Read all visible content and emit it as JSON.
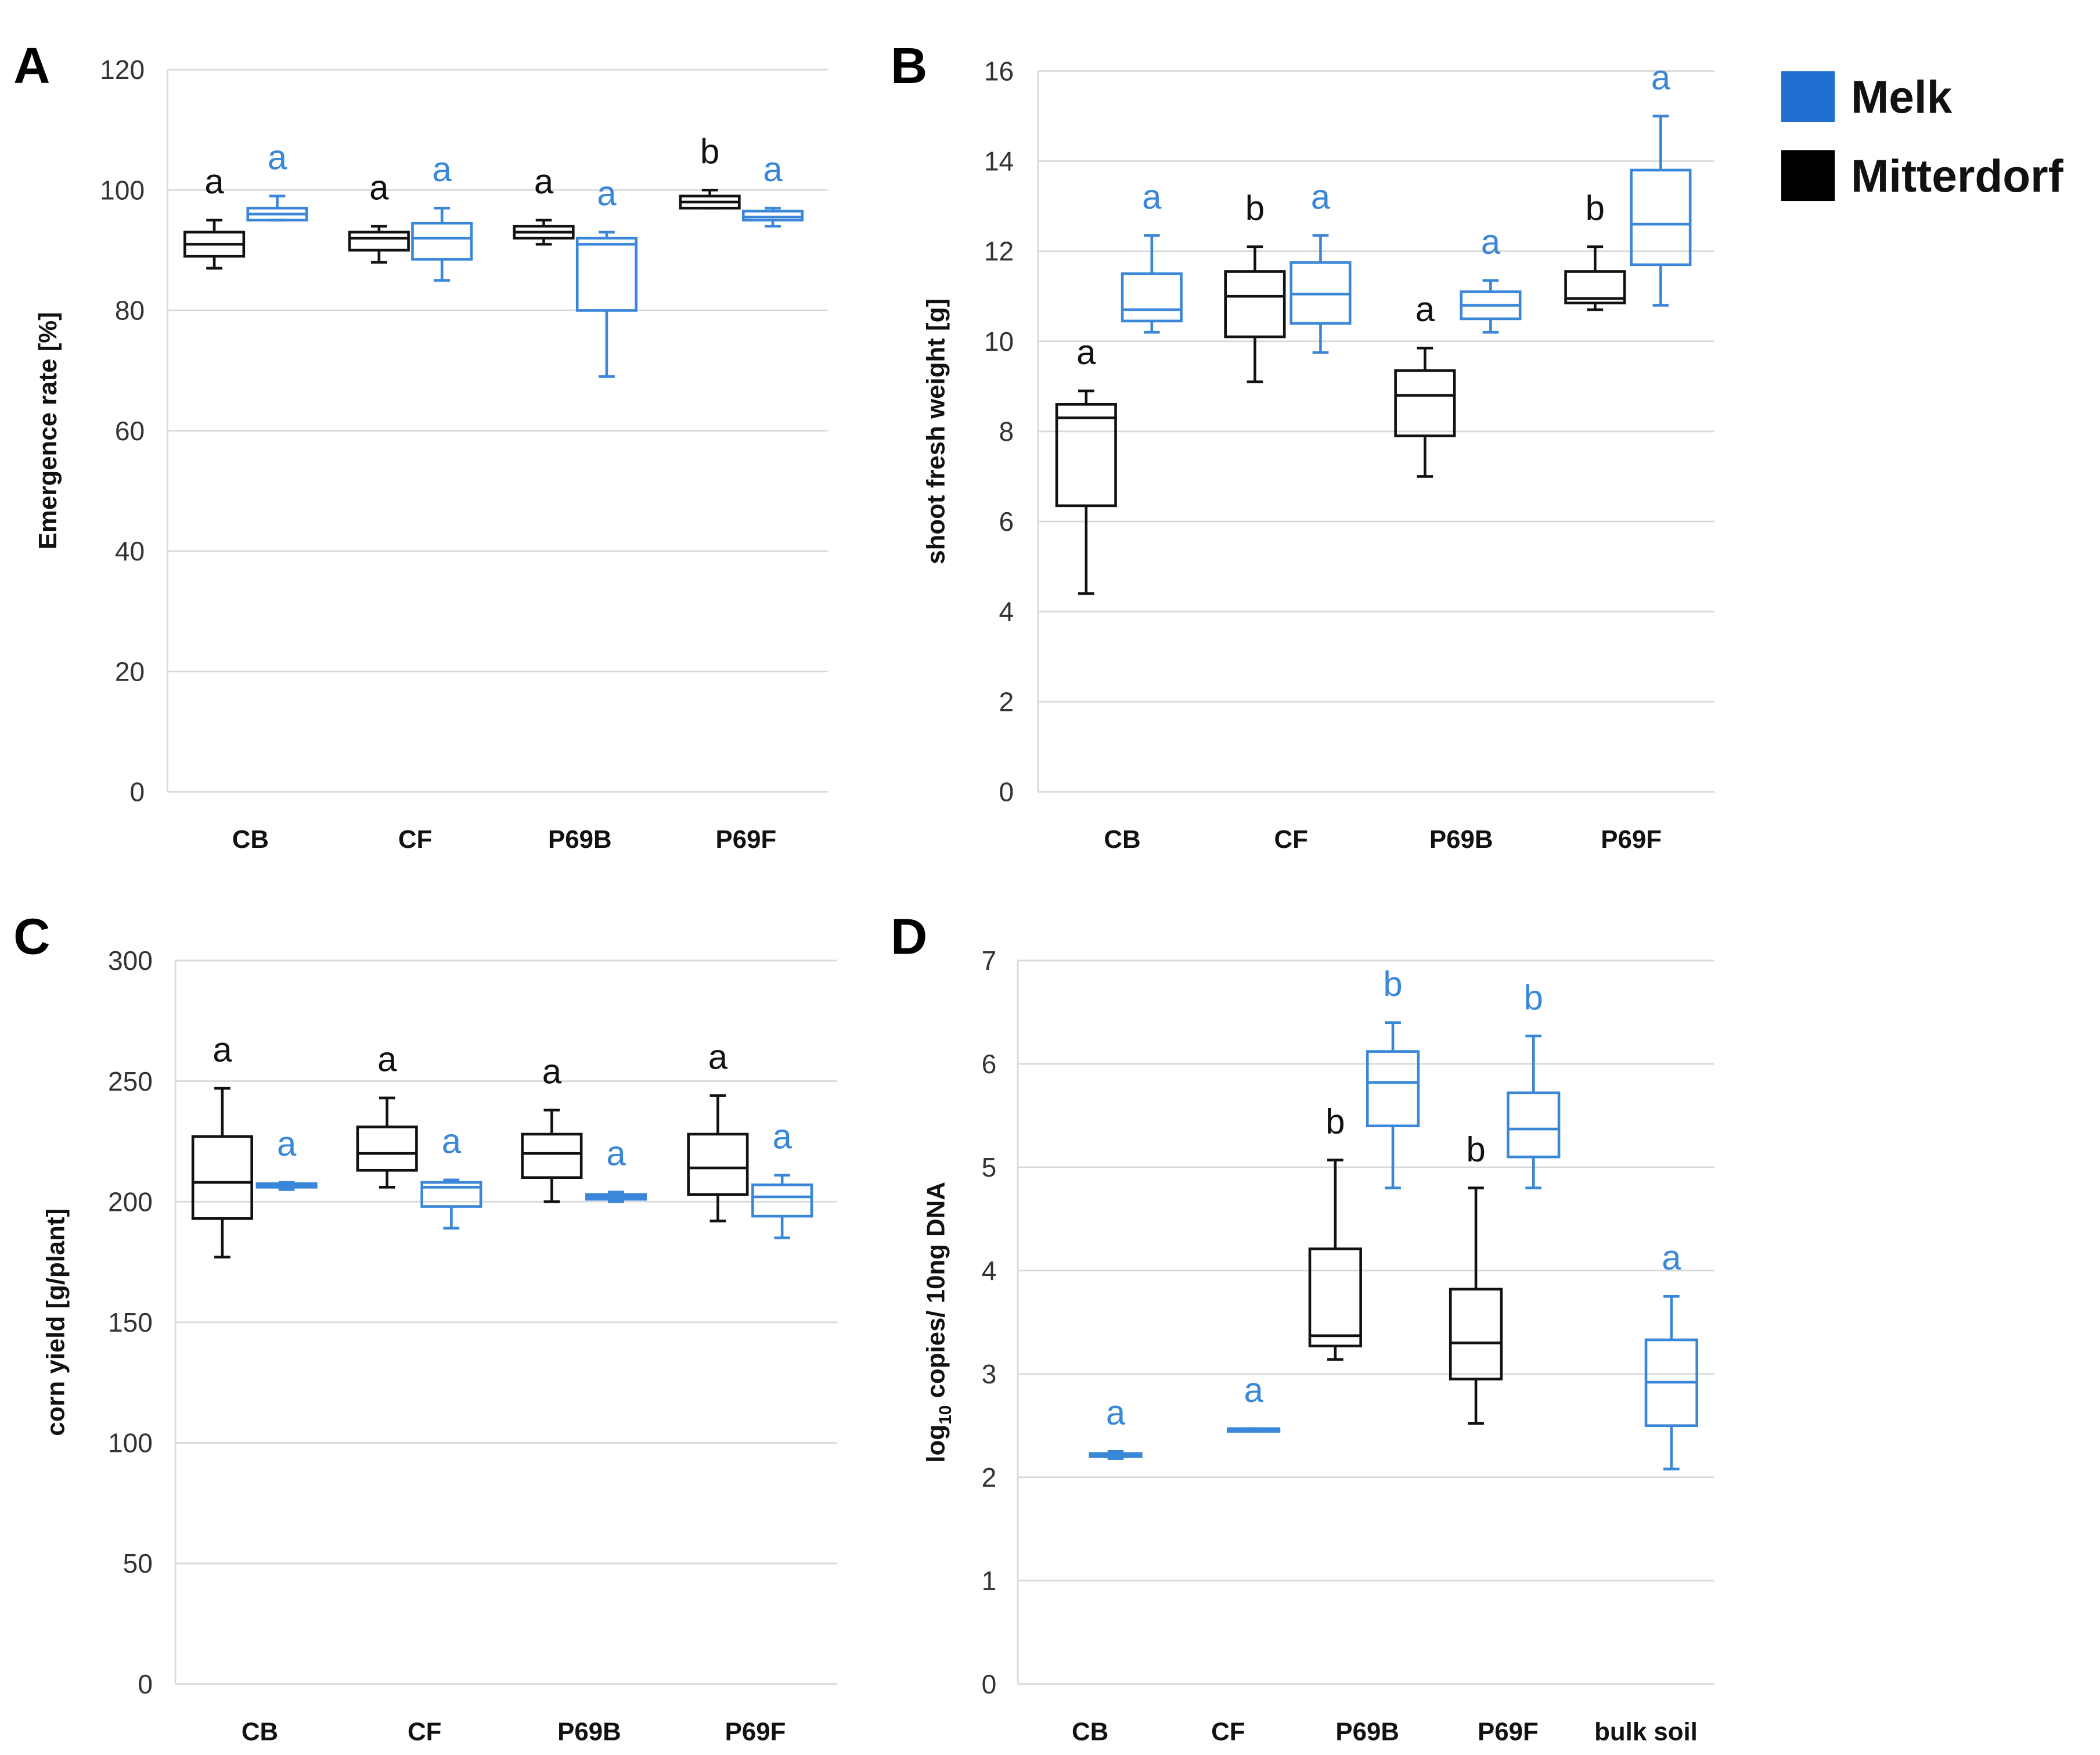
{
  "legend": [
    {
      "name": "Melk",
      "color": "#1f6fd0"
    },
    {
      "name": "Mitterdorf",
      "color": "#000000"
    }
  ],
  "colors": {
    "Melk_line": "#3a86d8",
    "Mitterdorf_line": "#111111",
    "Melk_letter": "#3a86d8",
    "Mitterdorf_letter": "#111111"
  },
  "chart_data": [
    {
      "panel": "A",
      "type": "box",
      "ylabel": "Emergence rate [%]",
      "ylim": [
        0,
        120
      ],
      "yticks": [
        0,
        20,
        40,
        60,
        80,
        100,
        120
      ],
      "categories": [
        "CB",
        "CF",
        "P69B",
        "P69F"
      ],
      "series": [
        {
          "name": "Mitterdorf",
          "stats": [
            [
              87,
              89,
              91,
              93,
              95
            ],
            [
              88,
              90,
              92,
              93,
              94
            ],
            [
              91,
              92,
              93,
              94,
              95
            ],
            [
              97,
              97,
              98,
              99,
              100
            ]
          ],
          "letters": [
            "a",
            "a",
            "a",
            "b"
          ]
        },
        {
          "name": "Melk",
          "stats": [
            [
              95,
              95,
              96,
              97,
              99
            ],
            [
              85,
              88.5,
              92,
              94.5,
              97
            ],
            [
              69,
              80,
              91,
              92,
              93
            ],
            [
              94,
              95,
              95.5,
              96.5,
              97
            ]
          ],
          "letters": [
            "a",
            "a",
            "a",
            "a"
          ]
        }
      ]
    },
    {
      "panel": "B",
      "type": "box",
      "ylabel": "shoot fresh weight [g]",
      "ylim": [
        0,
        16
      ],
      "yticks": [
        0,
        2,
        4,
        6,
        8,
        10,
        12,
        14,
        16
      ],
      "categories": [
        "CB",
        "CF",
        "P69B",
        "P69F"
      ],
      "series": [
        {
          "name": "Mitterdorf",
          "stats": [
            [
              4.4,
              6.35,
              8.3,
              8.6,
              8.9
            ],
            [
              9.1,
              10.1,
              11,
              11.55,
              12.1
            ],
            [
              7,
              7.9,
              8.8,
              9.35,
              9.85
            ],
            [
              10.7,
              10.85,
              10.95,
              11.55,
              12.1
            ]
          ],
          "letters": [
            "a",
            "b",
            "a",
            "b"
          ]
        },
        {
          "name": "Melk",
          "stats": [
            [
              10.2,
              10.45,
              10.7,
              11.5,
              12.35
            ],
            [
              9.75,
              10.4,
              11.05,
              11.75,
              12.35
            ],
            [
              10.2,
              10.5,
              10.8,
              11.1,
              11.35
            ],
            [
              10.8,
              11.7,
              12.6,
              13.8,
              15
            ]
          ],
          "letters": [
            "a",
            "a",
            "a",
            "a"
          ]
        }
      ]
    },
    {
      "panel": "C",
      "type": "box",
      "ylabel": "corn yield [g/plant]",
      "ylim": [
        0,
        300
      ],
      "yticks": [
        0,
        50,
        100,
        150,
        200,
        250,
        300
      ],
      "categories": [
        "CB",
        "CF",
        "P69B",
        "P69F"
      ],
      "series": [
        {
          "name": "Mitterdorf",
          "stats": [
            [
              177,
              193,
              208,
              227,
              247
            ],
            [
              206,
              213,
              220,
              231,
              243
            ],
            [
              200,
              210,
              220,
              228,
              238
            ],
            [
              192,
              203,
              214,
              228,
              244
            ]
          ],
          "letters": [
            "a",
            "a",
            "a",
            "a"
          ]
        },
        {
          "name": "Melk",
          "stats": [
            [
              205,
              206,
              207,
              207.5,
              208
            ],
            [
              189,
              198,
              206,
              208,
              209
            ],
            [
              200,
              201,
              202,
              203,
              204
            ],
            [
              185,
              194,
              202,
              207,
              211
            ]
          ],
          "letters": [
            "a",
            "a",
            "a",
            "a"
          ]
        }
      ]
    },
    {
      "panel": "D",
      "type": "box",
      "ylabel": "log10 copies/ 10ng DNA",
      "ylabel_main": "log",
      "ylabel_sub": "10",
      "ylabel_rest": " copies/ 10ng DNA",
      "ylim": [
        0,
        7
      ],
      "yticks": [
        0,
        1,
        2,
        3,
        4,
        5,
        6,
        7
      ],
      "categories": [
        "CB",
        "CF",
        "P69B",
        "P69F",
        "bulk soil"
      ],
      "series": [
        {
          "name": "Mitterdorf",
          "stats": [
            null,
            null,
            [
              3.14,
              3.27,
              3.37,
              4.21,
              5.07
            ],
            [
              2.52,
              2.95,
              3.3,
              3.82,
              4.8
            ],
            null
          ],
          "letters": [
            null,
            null,
            "b",
            "b",
            null
          ]
        },
        {
          "name": "Melk",
          "stats": [
            [
              2.18,
              2.2,
              2.22,
              2.23,
              2.25
            ],
            [
              2.47,
              2.47,
              2.47,
              2.47,
              2.47
            ],
            [
              4.8,
              5.4,
              5.82,
              6.12,
              6.4
            ],
            [
              4.8,
              5.1,
              5.37,
              5.72,
              6.27
            ],
            [
              2.08,
              2.5,
              2.92,
              3.33,
              3.75
            ]
          ],
          "letters": [
            "a",
            "a",
            "b",
            "b",
            "a"
          ]
        }
      ]
    }
  ]
}
